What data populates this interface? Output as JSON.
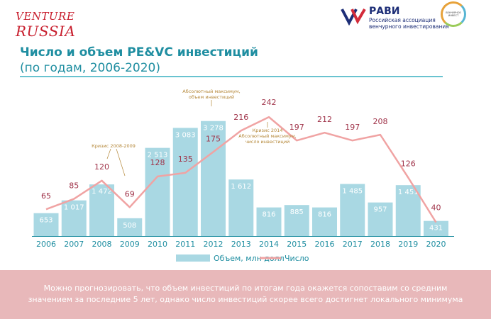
{
  "logos": {
    "left_line1": "VENTURE",
    "left_line2": "RUSSIA",
    "ravi_name": "РАВИ",
    "ravi_sub1": "Российская ассоциация",
    "ravi_sub2": "венчурного инвестирования",
    "circle_text": "ВЕНЧУРНОЕ ИНВЕСТ"
  },
  "header": {
    "title": "Число и объем PE&VC инвестиций",
    "subtitle": "(по годам, 2006-2020)"
  },
  "chart_data": {
    "type": "bar",
    "categories": [
      "2006",
      "2007",
      "2008",
      "2009",
      "2010",
      "2011",
      "2012",
      "2013",
      "2014",
      "2015",
      "2016",
      "2017",
      "2018",
      "2019",
      "2020"
    ],
    "series": [
      {
        "name": "Объем, млн долл",
        "type": "bar",
        "color": "#a9d8e3",
        "values": [
          653,
          1017,
          1472,
          508,
          2513,
          3083,
          3278,
          1612,
          816,
          885,
          816,
          1485,
          957,
          1451,
          431
        ],
        "labels": [
          "653",
          "1 017",
          "1 472",
          "508",
          "2 513",
          "3 083",
          "3 278",
          "1 612",
          "816",
          "885",
          "816",
          "1 485",
          "957",
          "1 451",
          "431"
        ]
      },
      {
        "name": "Число",
        "type": "line",
        "color": "#f0a3a3",
        "values": [
          65,
          85,
          120,
          69,
          128,
          135,
          175,
          216,
          242,
          197,
          212,
          197,
          208,
          126,
          40
        ]
      }
    ],
    "annotations": [
      {
        "text": "Кризис 2008-2009",
        "category": "2008"
      },
      {
        "text": "Абсолютный максимум, объем инвестиций",
        "category": "2012"
      },
      {
        "text": "Кризис 2014 Абсолютный максимум, число инвестиций",
        "category": "2014"
      }
    ],
    "legend_position": "bottom",
    "grid": false
  },
  "footer": {
    "text": "Можно прогнозировать, что объем инвестиций по итогам года окажется сопоставим со средним значением за последние 5 лет, однако число инвестиций скорее всего достигнет локального минимума"
  },
  "colors": {
    "accent": "#1f8ea1",
    "bar": "#a9d8e3",
    "line": "#f0a3a3",
    "count_label": "#a0344a",
    "footer_bg": "#e8b8ba"
  }
}
